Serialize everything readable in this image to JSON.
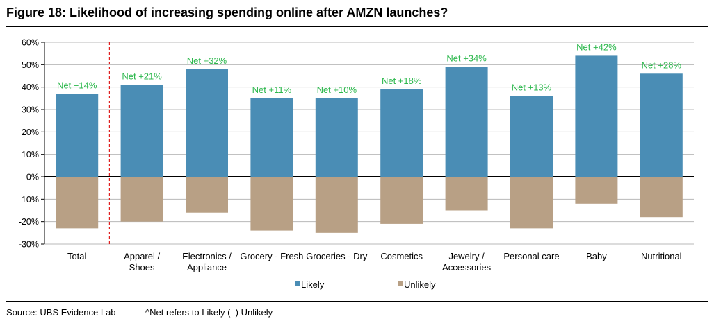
{
  "title": "Figure 18: Likelihood of increasing spending online after AMZN launches?",
  "footer": {
    "source": "Source:  UBS Evidence Lab",
    "note": "^Net refers to Likely (–) Unlikely"
  },
  "colors": {
    "likely": "#4a8db5",
    "unlikely": "#b8a085",
    "net_label": "#2db84d",
    "divider": "#e02020"
  },
  "chart_data": {
    "type": "bar",
    "stacked": true,
    "title": "Likelihood of increasing spending online after AMZN launches?",
    "categories": [
      [
        "Total"
      ],
      [
        "Apparel /",
        "Shoes"
      ],
      [
        "Electronics /",
        "Appliance"
      ],
      [
        "Grocery - Fresh"
      ],
      [
        "Groceries - Dry"
      ],
      [
        "Cosmetics"
      ],
      [
        "Jewelry /",
        "Accessories"
      ],
      [
        "Personal care"
      ],
      [
        "Baby"
      ],
      [
        "Nutritional"
      ]
    ],
    "series": [
      {
        "name": "Likely",
        "values": [
          37,
          41,
          48,
          35,
          35,
          39,
          49,
          36,
          54,
          46
        ]
      },
      {
        "name": "Unlikely",
        "values": [
          -23,
          -20,
          -16,
          -24,
          -25,
          -21,
          -15,
          -23,
          -12,
          -18
        ]
      }
    ],
    "net_labels": [
      "Net +14%",
      "Net +21%",
      "Net +32%",
      "Net +11%",
      "Net +10%",
      "Net +18%",
      "Net +34%",
      "Net +13%",
      "Net +42%",
      "Net +28%"
    ],
    "ylim": [
      -30,
      60
    ],
    "yticks": [
      -30,
      -20,
      -10,
      0,
      10,
      20,
      30,
      40,
      50,
      60
    ],
    "ytick_labels": [
      "-30%",
      "-20%",
      "-10%",
      "0%",
      "10%",
      "20%",
      "30%",
      "40%",
      "50%",
      "60%"
    ],
    "legend": [
      "Likely",
      "Unlikely"
    ],
    "legend_position": "bottom-center",
    "grid": true
  }
}
